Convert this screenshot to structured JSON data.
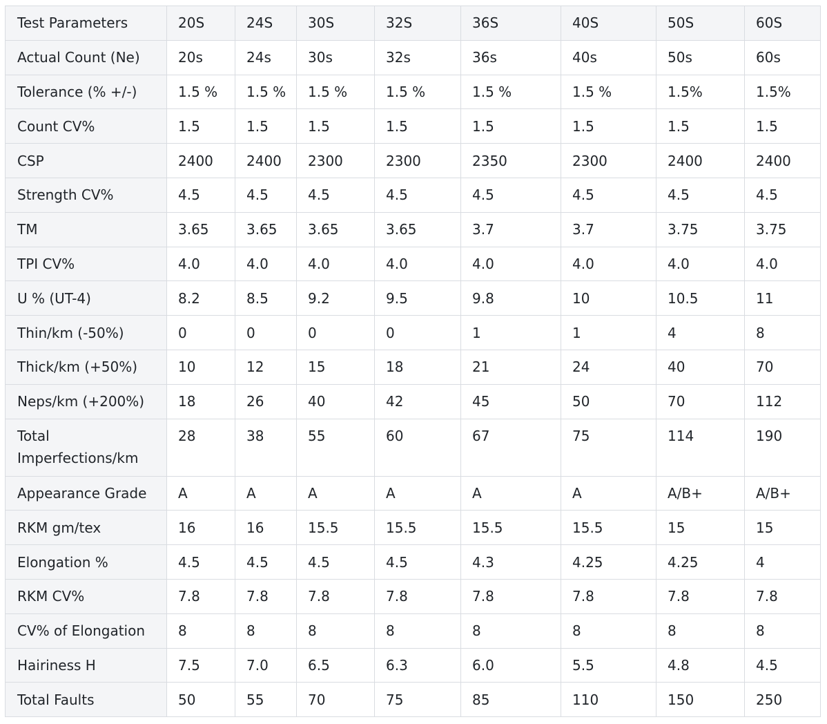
{
  "table": {
    "headers": [
      "Test Parameters",
      "20S",
      "24S",
      "30S",
      "32S",
      "36S",
      "40S",
      "50S",
      "60S"
    ],
    "rows": [
      [
        "Actual Count (Ne)",
        "20s",
        "24s",
        "30s",
        "32s",
        "36s",
        "40s",
        "50s",
        "60s"
      ],
      [
        "Tolerance (% +/-)",
        "1.5 %",
        "1.5 %",
        "1.5 %",
        "1.5 %",
        "1.5 %",
        "1.5 %",
        "1.5%",
        "1.5%"
      ],
      [
        "Count CV%",
        "1.5",
        "1.5",
        "1.5",
        "1.5",
        "1.5",
        "1.5",
        "1.5",
        "1.5"
      ],
      [
        "CSP",
        "2400",
        "2400",
        "2300",
        "2300",
        "2350",
        "2300",
        "2400",
        "2400"
      ],
      [
        "Strength CV%",
        "4.5",
        "4.5",
        "4.5",
        "4.5",
        "4.5",
        "4.5",
        "4.5",
        "4.5"
      ],
      [
        "TM",
        "3.65",
        "3.65",
        "3.65",
        "3.65",
        "3.7",
        "3.7",
        "3.75",
        "3.75"
      ],
      [
        "TPI CV%",
        "4.0",
        "4.0",
        "4.0",
        "4.0",
        "4.0",
        "4.0",
        "4.0",
        "4.0"
      ],
      [
        "U % (UT-4)",
        "8.2",
        "8.5",
        "9.2",
        "9.5",
        "9.8",
        "10",
        "10.5",
        "11"
      ],
      [
        "Thin/km (-50%)",
        "0",
        "0",
        "0",
        "0",
        "1",
        "1",
        "4",
        "8"
      ],
      [
        "Thick/km (+50%)",
        "10",
        "12",
        "15",
        "18",
        "21",
        "24",
        "40",
        "70"
      ],
      [
        "Neps/km (+200%)",
        "18",
        "26",
        "40",
        "42",
        "45",
        "50",
        "70",
        "112"
      ],
      [
        "Total Imperfections/km",
        "28",
        "38",
        "55",
        "60",
        "67",
        "75",
        "114",
        "190"
      ],
      [
        "Appearance Grade",
        "A",
        "A",
        "A",
        "A",
        "A",
        "A",
        "A/B+",
        "A/B+"
      ],
      [
        "RKM gm/tex",
        "16",
        "16",
        "15.5",
        "15.5",
        "15.5",
        "15.5",
        "15",
        "15"
      ],
      [
        "Elongation %",
        "4.5",
        "4.5",
        "4.5",
        "4.5",
        "4.3",
        "4.25",
        "4.25",
        "4"
      ],
      [
        "RKM CV%",
        "7.8",
        "7.8",
        "7.8",
        "7.8",
        "7.8",
        "7.8",
        "7.8",
        "7.8"
      ],
      [
        "CV% of Elongation",
        "8",
        "8",
        "8",
        "8",
        "8",
        "8",
        "8",
        "8"
      ],
      [
        "Hairiness H",
        "7.5",
        "7.0",
        "6.5",
        "6.3",
        "6.0",
        "5.5",
        "4.8",
        "4.5"
      ],
      [
        "Total Faults",
        "50",
        "55",
        "70",
        "75",
        "85",
        "110",
        "150",
        "250"
      ]
    ]
  }
}
